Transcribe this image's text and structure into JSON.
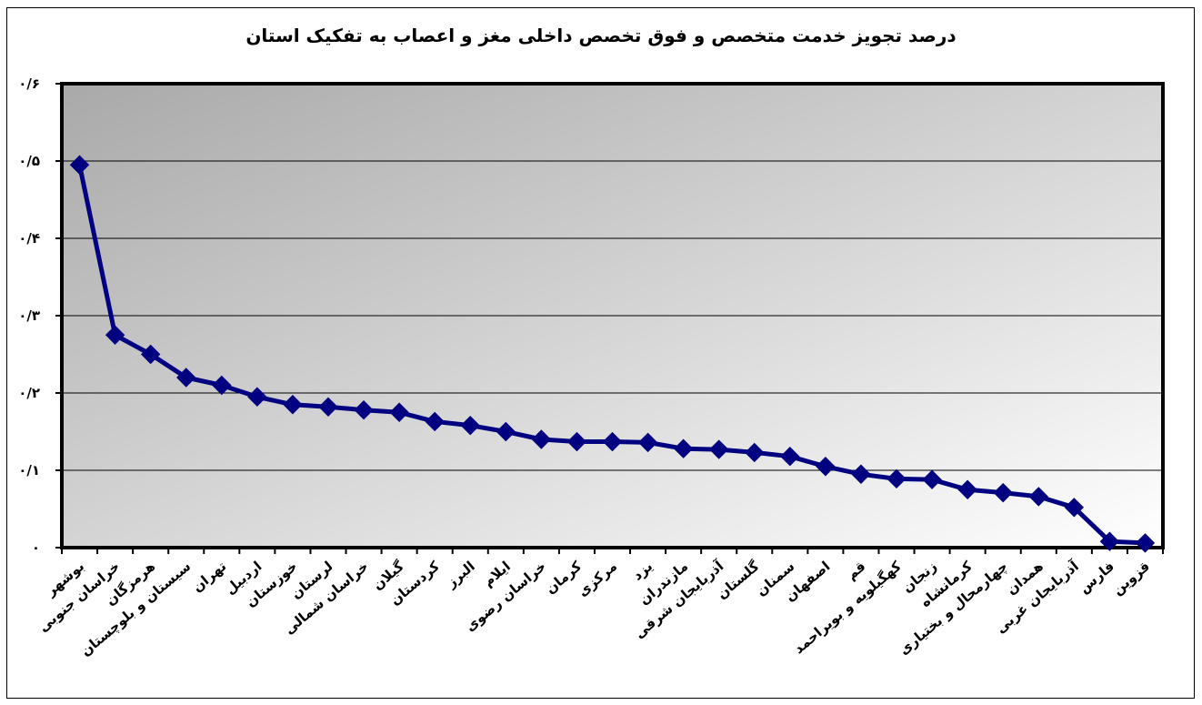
{
  "chart_data": {
    "type": "line",
    "title": "درصد تجویز خدمت متخصص و فوق تخصص داخلی مغز و اعصاب به تفکیک استان",
    "xlabel": "",
    "ylabel": "",
    "ylim": [
      0,
      0.6
    ],
    "y_ticks": [
      0,
      0.1,
      0.2,
      0.3,
      0.4,
      0.5,
      0.6
    ],
    "y_tick_labels": [
      "۰",
      "۰/۱",
      "۰/۲",
      "۰/۳",
      "۰/۴",
      "۰/۵",
      "۰/۶"
    ],
    "grid": true,
    "legend": "none",
    "colors": {
      "line": "#000080",
      "marker": "#000080",
      "plot_bg_dark": "#a9a9a9",
      "plot_bg_light": "#ffffff"
    },
    "categories": [
      "بوشهر",
      "خراسان جنوبی",
      "هرمزگان",
      "سیستان و بلوچستان",
      "تهران",
      "اردبیل",
      "خوزستان",
      "لرستان",
      "خراسان شمالی",
      "گیلان",
      "کردستان",
      "البرز",
      "ایلام",
      "خراسان رضوی",
      "کرمان",
      "مرکزی",
      "یزد",
      "مازندران",
      "آذربایجان شرقی",
      "گلستان",
      "سمنان",
      "اصفهان",
      "قم",
      "کهگیلویه و بویراحمد",
      "زنجان",
      "کرمانشاه",
      "چهارمحال و بختیاری",
      "همدان",
      "آذربایجان غربی",
      "فارس",
      "قزوین"
    ],
    "series": [
      {
        "values": [
          0.495,
          0.275,
          0.25,
          0.22,
          0.21,
          0.195,
          0.185,
          0.182,
          0.178,
          0.175,
          0.163,
          0.158,
          0.15,
          0.14,
          0.137,
          0.137,
          0.136,
          0.128,
          0.127,
          0.123,
          0.118,
          0.105,
          0.095,
          0.089,
          0.088,
          0.075,
          0.071,
          0.066,
          0.052,
          0.008,
          0.006
        ]
      }
    ]
  }
}
